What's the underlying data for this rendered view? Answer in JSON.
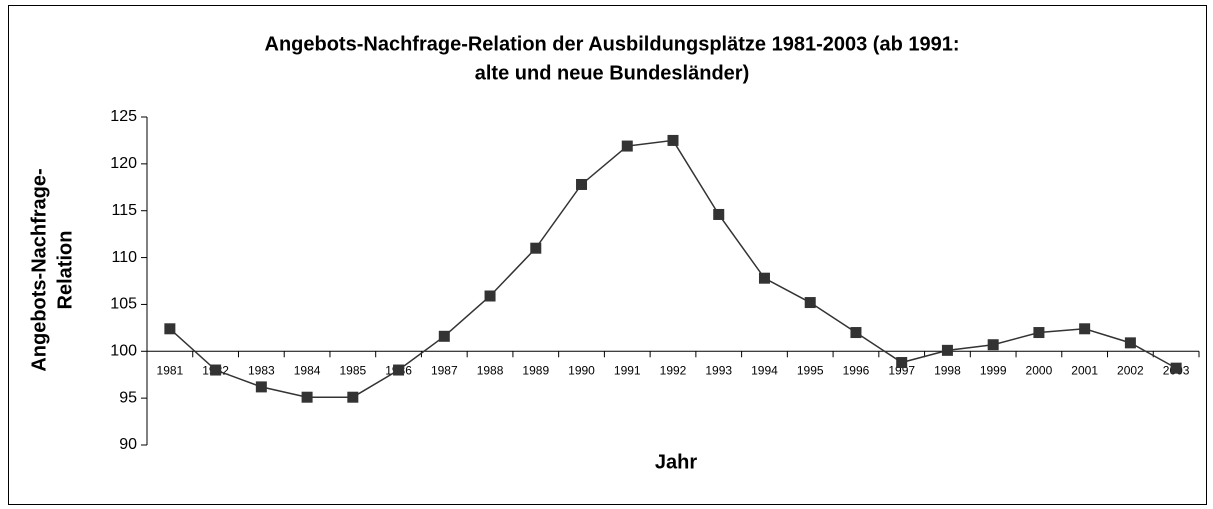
{
  "chart_data": {
    "type": "line",
    "title": [
      "Angebots-Nachfrage-Relation der Ausbildungsplätze 1981-2003 (ab 1991:",
      "alte und neue Bundesländer)"
    ],
    "x_label": "Jahr",
    "y_label": [
      "Angebots-Nachfrage-",
      "Relation"
    ],
    "categories": [
      "1981",
      "1982",
      "1983",
      "1984",
      "1985",
      "1986",
      "1987",
      "1988",
      "1989",
      "1990",
      "1991",
      "1992",
      "1993",
      "1994",
      "1995",
      "1996",
      "1997",
      "1998",
      "1999",
      "2000",
      "2001",
      "2002",
      "2003"
    ],
    "series": [
      {
        "name": "Angebots-Nachfrage-Relation",
        "color": "#333333",
        "values": [
          102.4,
          98.0,
          96.2,
          95.1,
          95.1,
          98.0,
          101.6,
          105.9,
          111.0,
          117.8,
          121.9,
          122.5,
          114.6,
          107.8,
          105.2,
          102.0,
          98.8,
          100.1,
          100.7,
          102.0,
          102.4,
          100.9,
          98.2
        ]
      }
    ],
    "ylim": [
      90,
      125
    ],
    "yticks": [
      90,
      95,
      100,
      105,
      110,
      115,
      120,
      125
    ],
    "x_axis_crosses_at": 100,
    "grid": false,
    "legend": false
  }
}
